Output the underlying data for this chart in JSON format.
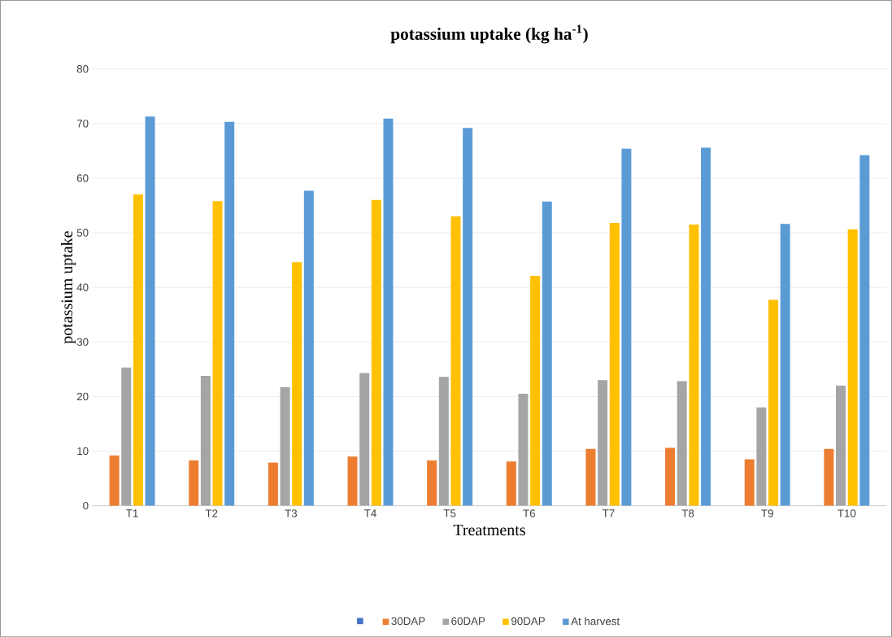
{
  "chart_data": {
    "type": "bar",
    "title": "potassium uptake (kg ha$^{-1}$)",
    "xlabel": "Treatments",
    "ylabel": "potassium uptake",
    "categories": [
      "T1",
      "T2",
      "T3",
      "T4",
      "T5",
      "T6",
      "T7",
      "T8",
      "T9",
      "T10"
    ],
    "series": [
      {
        "color": "#4472c4",
        "values": [
          null,
          null,
          null,
          null,
          null,
          null,
          null,
          null,
          null,
          null
        ]
      },
      {
        "name": "30DAP",
        "color": "#ed7d31",
        "values": [
          9.2,
          8.3,
          7.9,
          9.0,
          8.3,
          8.1,
          10.4,
          10.6,
          8.5,
          10.4
        ]
      },
      {
        "name": "60DAP",
        "color": "#a5a5a5",
        "values": [
          25.3,
          23.8,
          21.7,
          24.3,
          23.6,
          20.5,
          23.0,
          22.8,
          18.0,
          22.0
        ]
      },
      {
        "name": "90DAP",
        "color": "#ffc000",
        "values": [
          57.0,
          55.8,
          44.6,
          56.0,
          53.0,
          42.1,
          51.8,
          51.5,
          37.7,
          50.6
        ]
      },
      {
        "name": "At harvest",
        "color": "#5b9bd5",
        "values": [
          71.3,
          70.3,
          57.7,
          70.9,
          69.2,
          55.7,
          65.4,
          65.6,
          51.6,
          64.2
        ]
      }
    ],
    "ylim": [
      0,
      80
    ],
    "yticks": [
      0,
      10,
      20,
      30,
      40,
      50,
      60,
      70,
      80
    ],
    "grid": "y",
    "legend": "bottom"
  }
}
